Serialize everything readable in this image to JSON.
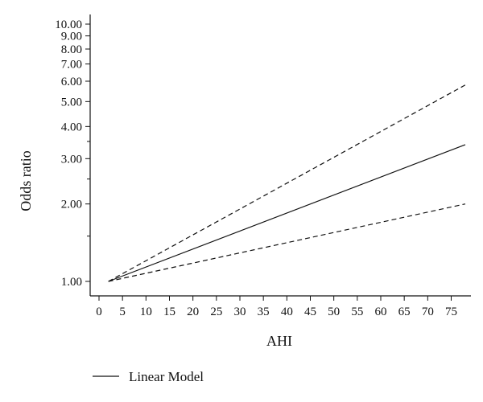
{
  "chart_data": {
    "type": "line",
    "title": "",
    "xlabel": "AHI",
    "ylabel": "Odds ratio",
    "yscale": "log",
    "xlim": [
      0,
      78
    ],
    "ylim": [
      1.0,
      10.0
    ],
    "x_ticks": [
      0,
      5,
      10,
      15,
      20,
      25,
      30,
      35,
      40,
      45,
      50,
      55,
      60,
      65,
      70,
      75
    ],
    "x_tick_labels": [
      "0",
      "5",
      "10",
      "15",
      "20",
      "25",
      "30",
      "35",
      "40",
      "45",
      "50",
      "55",
      "60",
      "65",
      "70",
      "75"
    ],
    "y_ticks": [
      1.0,
      2.0,
      3.0,
      4.0,
      5.0,
      6.0,
      7.0,
      8.0,
      9.0,
      10.0
    ],
    "y_tick_labels": [
      "1.00",
      "2.00",
      "3.00",
      "4.00",
      "5.00",
      "6.00",
      "7.00",
      "8.00",
      "9.00",
      "10.00"
    ],
    "grid": false,
    "legend_position": "bottom-left",
    "series": [
      {
        "name": "Linear Model",
        "style": "solid",
        "color": "#111111",
        "x": [
          2,
          78
        ],
        "y": [
          1.0,
          3.4
        ]
      },
      {
        "style": "dashed",
        "color": "#111111",
        "x": [
          2,
          78
        ],
        "y": [
          1.0,
          5.8
        ]
      },
      {
        "style": "dashed",
        "color": "#111111",
        "x": [
          2,
          78
        ],
        "y": [
          1.0,
          2.0
        ]
      }
    ]
  }
}
